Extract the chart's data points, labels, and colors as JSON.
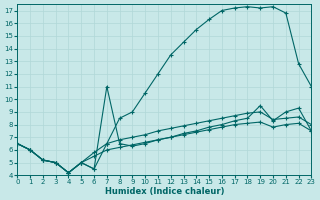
{
  "xlabel": "Humidex (Indice chaleur)",
  "bg_color": "#c8e8e8",
  "line_color": "#006666",
  "grid_color": "#b0d8d8",
  "xlim": [
    0,
    23
  ],
  "ylim": [
    4,
    17.5
  ],
  "x_ticks": [
    0,
    1,
    2,
    3,
    4,
    5,
    6,
    7,
    8,
    9,
    10,
    11,
    12,
    13,
    14,
    15,
    16,
    17,
    18,
    19,
    20,
    21,
    22,
    23
  ],
  "y_ticks": [
    4,
    5,
    6,
    7,
    8,
    9,
    10,
    11,
    12,
    13,
    14,
    15,
    16,
    17
  ],
  "series": [
    {
      "x": [
        0,
        1,
        2,
        3,
        4,
        5,
        6,
        7,
        8,
        9,
        10,
        11,
        12,
        13,
        14,
        15,
        16,
        17,
        18,
        19,
        20,
        21,
        22,
        23
      ],
      "y": [
        6.5,
        6.0,
        5.2,
        5.0,
        4.2,
        5.0,
        4.5,
        6.5,
        8.5,
        9.0,
        10.5,
        12.0,
        13.5,
        14.5,
        15.5,
        16.3,
        17.0,
        17.2,
        17.3,
        17.2,
        17.3,
        16.8,
        12.8,
        11.0
      ]
    },
    {
      "x": [
        0,
        1,
        2,
        3,
        4,
        5,
        6,
        7,
        8,
        9,
        10,
        11,
        12,
        13,
        14,
        15,
        16,
        17,
        18,
        19,
        20,
        21,
        22,
        23
      ],
      "y": [
        6.5,
        6.0,
        5.2,
        5.0,
        4.2,
        5.0,
        4.5,
        11.0,
        6.5,
        6.3,
        6.5,
        6.8,
        7.0,
        7.3,
        7.5,
        7.8,
        8.0,
        8.3,
        8.5,
        9.5,
        8.3,
        9.0,
        9.3,
        7.5
      ]
    },
    {
      "x": [
        0,
        1,
        2,
        3,
        4,
        5,
        6,
        7,
        8,
        9,
        10,
        11,
        12,
        13,
        14,
        15,
        16,
        17,
        18,
        19,
        20,
        21,
        22,
        23
      ],
      "y": [
        6.5,
        6.0,
        5.2,
        5.0,
        4.2,
        5.0,
        5.8,
        6.5,
        6.8,
        7.0,
        7.2,
        7.5,
        7.7,
        7.9,
        8.1,
        8.3,
        8.5,
        8.7,
        8.9,
        9.0,
        8.4,
        8.5,
        8.6,
        8.0
      ]
    },
    {
      "x": [
        0,
        1,
        2,
        3,
        4,
        5,
        6,
        7,
        8,
        9,
        10,
        11,
        12,
        13,
        14,
        15,
        16,
        17,
        18,
        19,
        20,
        21,
        22,
        23
      ],
      "y": [
        6.5,
        6.0,
        5.2,
        5.0,
        4.2,
        5.0,
        5.5,
        6.0,
        6.2,
        6.4,
        6.6,
        6.8,
        7.0,
        7.2,
        7.4,
        7.6,
        7.8,
        8.0,
        8.1,
        8.2,
        7.8,
        8.0,
        8.1,
        7.5
      ]
    }
  ]
}
